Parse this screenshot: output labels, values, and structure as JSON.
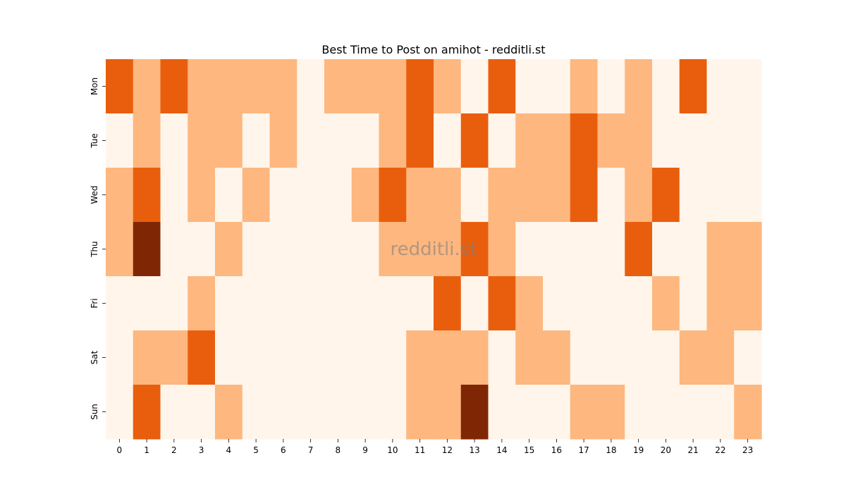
{
  "chart_data": {
    "type": "heatmap",
    "title": "Best Time to Post on amihot - redditli.st",
    "xlabel": "",
    "ylabel": "",
    "watermark": "redditli.st",
    "x": [
      "0",
      "1",
      "2",
      "3",
      "4",
      "5",
      "6",
      "7",
      "8",
      "9",
      "10",
      "11",
      "12",
      "13",
      "14",
      "15",
      "16",
      "17",
      "18",
      "19",
      "20",
      "21",
      "22",
      "23"
    ],
    "y": [
      "Mon",
      "Tue",
      "Wed",
      "Thu",
      "Fri",
      "Sat",
      "Sun"
    ],
    "values": [
      [
        2,
        1,
        2,
        1,
        1,
        1,
        1,
        0,
        1,
        1,
        1,
        2,
        1,
        0,
        2,
        0,
        0,
        1,
        0,
        1,
        0,
        2,
        0,
        0
      ],
      [
        0,
        1,
        0,
        1,
        1,
        0,
        1,
        0,
        0,
        0,
        1,
        2,
        0,
        2,
        0,
        1,
        1,
        2,
        1,
        1,
        0,
        0,
        0,
        0
      ],
      [
        1,
        2,
        0,
        1,
        0,
        1,
        0,
        0,
        0,
        1,
        2,
        1,
        1,
        0,
        1,
        1,
        1,
        2,
        0,
        1,
        2,
        0,
        0,
        0
      ],
      [
        1,
        3,
        0,
        0,
        1,
        0,
        0,
        0,
        0,
        0,
        1,
        1,
        1,
        2,
        1,
        0,
        0,
        0,
        0,
        2,
        0,
        0,
        1,
        1
      ],
      [
        0,
        0,
        0,
        1,
        0,
        0,
        0,
        0,
        0,
        0,
        0,
        0,
        2,
        0,
        2,
        1,
        0,
        0,
        0,
        0,
        1,
        0,
        1,
        1
      ],
      [
        0,
        1,
        1,
        2,
        0,
        0,
        0,
        0,
        0,
        0,
        0,
        1,
        1,
        1,
        0,
        1,
        1,
        0,
        0,
        0,
        0,
        1,
        1,
        0
      ],
      [
        0,
        2,
        0,
        0,
        1,
        0,
        0,
        0,
        0,
        0,
        0,
        1,
        1,
        3,
        0,
        0,
        0,
        1,
        1,
        0,
        0,
        0,
        0,
        1
      ]
    ],
    "colorscale": [
      "#fff5eb",
      "#fdb77f",
      "#e95e0d",
      "#7f2704"
    ],
    "grid": false,
    "legend": "none"
  }
}
